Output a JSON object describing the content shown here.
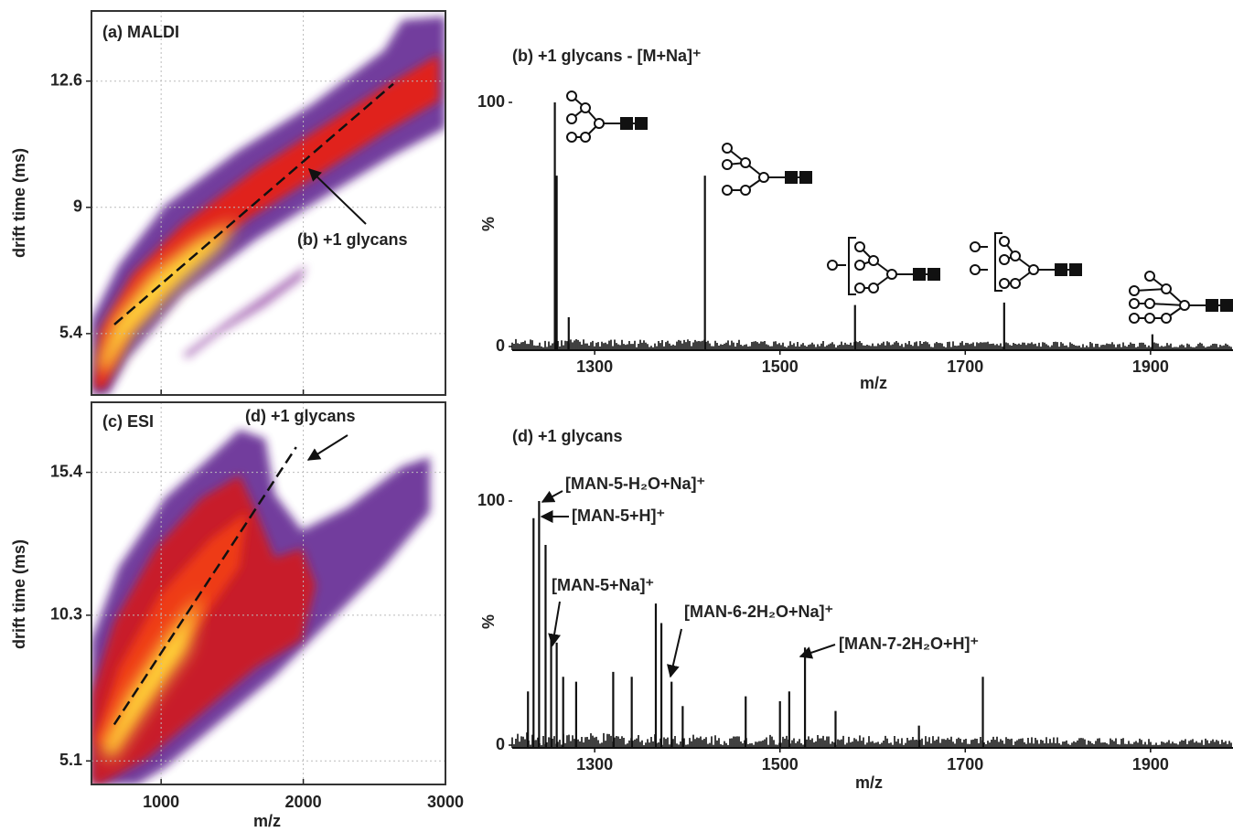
{
  "chart_data": [
    {
      "type": "heatmap",
      "title": "(a) MALDI",
      "ylabel": "drift time (ms)",
      "xlim": [
        510,
        3000
      ],
      "ylim": [
        3.65,
        14.6
      ],
      "yticks": [
        5.4,
        9.0,
        12.6
      ],
      "grid": true,
      "annotations": [
        {
          "text": "(b) +1 glycans"
        }
      ],
      "trend_line": {
        "x": [
          671,
          2633
        ],
        "y": [
          5.66,
          12.52
        ]
      }
    },
    {
      "type": "spectrum",
      "title": "(b) +1 glycans -  [M+Na]⁺",
      "xlabel": "m/z",
      "ylabel": "%",
      "xlim": [
        1211,
        1989
      ],
      "ylim": [
        0,
        100
      ],
      "xticks": [
        1300,
        1500,
        1700,
        1900
      ],
      "yticks": [
        0,
        100
      ],
      "color": "#111111",
      "x": [
        1257,
        1259,
        1272,
        1419,
        1581,
        1742,
        1902
      ],
      "values": [
        100,
        70,
        12,
        70,
        17,
        18,
        5
      ]
    },
    {
      "type": "heatmap",
      "title": "(c) ESI",
      "xlabel": "m/z",
      "ylabel": "drift time (ms)",
      "xlim": [
        510,
        3000
      ],
      "ylim": [
        4.26,
        17.9
      ],
      "xticks": [
        1000,
        2000,
        3000
      ],
      "yticks": [
        5.1,
        10.3,
        15.4
      ],
      "grid": true,
      "annotations": [
        {
          "text": "(d) +1 glycans"
        }
      ],
      "trend_line": {
        "x": [
          670,
          1950
        ],
        "y": [
          6.4,
          16.3
        ]
      }
    },
    {
      "type": "spectrum",
      "title": "(d) +1 glycans",
      "xlabel": "m/z",
      "ylabel": "%",
      "xlim": [
        1211,
        1989
      ],
      "ylim": [
        0,
        100
      ],
      "xticks": [
        1300,
        1500,
        1700,
        1900
      ],
      "yticks": [
        0,
        100
      ],
      "color": "#111111",
      "x": [
        1228,
        1234,
        1240,
        1247,
        1253,
        1259,
        1266,
        1280,
        1320,
        1340,
        1366,
        1372,
        1383,
        1395,
        1463,
        1500,
        1510,
        1527,
        1560,
        1650,
        1719
      ],
      "values": [
        22,
        93,
        100,
        82,
        45,
        42,
        28,
        26,
        30,
        28,
        58,
        50,
        26,
        16,
        20,
        18,
        22,
        40,
        14,
        8,
        28
      ],
      "annotations": [
        {
          "text": "[MAN-5-H₂O+Na]⁺"
        },
        {
          "text": "[MAN-5+H]⁺"
        },
        {
          "text": "[MAN-5+Na]⁺"
        },
        {
          "text": "[MAN-6-2H₂O+Na]⁺"
        },
        {
          "text": "[MAN-7-2H₂O+H]⁺"
        }
      ]
    }
  ]
}
